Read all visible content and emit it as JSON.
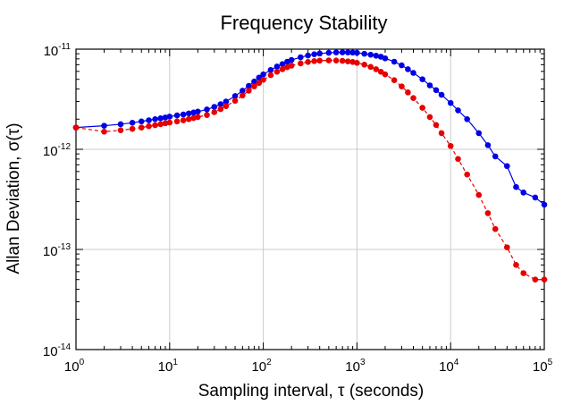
{
  "chart_data": {
    "type": "line",
    "title": "Frequency Stability",
    "xlabel": "Sampling interval, τ (seconds)",
    "ylabel": "Allan Deviation, σ(τ)",
    "xscale": "log",
    "yscale": "log",
    "xlim": [
      1,
      100000
    ],
    "ylim": [
      1e-14,
      1e-11
    ],
    "x_ticks": [
      {
        "base": "10",
        "exp": "0",
        "value": 1
      },
      {
        "base": "10",
        "exp": "1",
        "value": 10
      },
      {
        "base": "10",
        "exp": "2",
        "value": 100
      },
      {
        "base": "10",
        "exp": "3",
        "value": 1000
      },
      {
        "base": "10",
        "exp": "4",
        "value": 10000
      },
      {
        "base": "10",
        "exp": "5",
        "value": 100000
      }
    ],
    "y_ticks": [
      {
        "base": "10",
        "exp": "-14",
        "value": 1e-14
      },
      {
        "base": "10",
        "exp": "-13",
        "value": 1e-13
      },
      {
        "base": "10",
        "exp": "-12",
        "value": 1e-12
      },
      {
        "base": "10",
        "exp": "-11",
        "value": 1e-11
      }
    ],
    "grid": true,
    "series": [
      {
        "color": "#0000e6",
        "line_style": "solid",
        "x": [
          1,
          2,
          3,
          4,
          5,
          6,
          7,
          8,
          9,
          10,
          12,
          14,
          16,
          18,
          20,
          25,
          30,
          35,
          40,
          50,
          60,
          70,
          80,
          90,
          100,
          120,
          140,
          160,
          180,
          200,
          250,
          300,
          350,
          400,
          500,
          600,
          700,
          800,
          900,
          1000,
          1200,
          1400,
          1600,
          1800,
          2000,
          2500,
          3000,
          3500,
          4000,
          5000,
          6000,
          7000,
          8000,
          10000,
          12000,
          15000,
          20000,
          25000,
          30000,
          40000,
          50000,
          60000,
          80000,
          100000
        ],
        "y": [
          1.65e-12,
          1.72e-12,
          1.78e-12,
          1.84e-12,
          1.9e-12,
          1.95e-12,
          2e-12,
          2.04e-12,
          2.08e-12,
          2.12e-12,
          2.18e-12,
          2.23e-12,
          2.28e-12,
          2.33e-12,
          2.38e-12,
          2.5e-12,
          2.65e-12,
          2.82e-12,
          3e-12,
          3.4e-12,
          3.85e-12,
          4.3e-12,
          4.75e-12,
          5.2e-12,
          5.6e-12,
          6.2e-12,
          6.7e-12,
          7.1e-12,
          7.5e-12,
          7.8e-12,
          8.3e-12,
          8.65e-12,
          8.9e-12,
          9.05e-12,
          9.2e-12,
          9.28e-12,
          9.3e-12,
          9.28e-12,
          9.25e-12,
          9.2e-12,
          9e-12,
          8.8e-12,
          8.6e-12,
          8.4e-12,
          8.1e-12,
          7.5e-12,
          6.9e-12,
          6.3e-12,
          5.8e-12,
          5e-12,
          4.35e-12,
          3.9e-12,
          3.5e-12,
          2.9e-12,
          2.45e-12,
          2e-12,
          1.45e-12,
          1.1e-12,
          8.5e-13,
          6.8e-13,
          4.2e-13,
          3.7e-13,
          3.3e-13,
          2.8e-13
        ]
      },
      {
        "color": "#e60000",
        "line_style": "dashed",
        "x": [
          1,
          2,
          3,
          4,
          5,
          6,
          7,
          8,
          9,
          10,
          12,
          14,
          16,
          18,
          20,
          25,
          30,
          35,
          40,
          50,
          60,
          70,
          80,
          90,
          100,
          120,
          140,
          160,
          180,
          200,
          250,
          300,
          350,
          400,
          500,
          600,
          700,
          800,
          900,
          1000,
          1200,
          1400,
          1600,
          1800,
          2000,
          2500,
          3000,
          3500,
          4000,
          5000,
          6000,
          7000,
          8000,
          10000,
          12000,
          15000,
          20000,
          25000,
          30000,
          40000,
          50000,
          60000,
          80000,
          100000
        ],
        "y": [
          1.65e-12,
          1.5e-12,
          1.55e-12,
          1.6e-12,
          1.65e-12,
          1.7e-12,
          1.74e-12,
          1.78e-12,
          1.82e-12,
          1.85e-12,
          1.9e-12,
          1.95e-12,
          2e-12,
          2.05e-12,
          2.1e-12,
          2.2e-12,
          2.35e-12,
          2.52e-12,
          2.7e-12,
          3.05e-12,
          3.45e-12,
          3.85e-12,
          4.25e-12,
          4.6e-12,
          4.95e-12,
          5.5e-12,
          5.95e-12,
          6.3e-12,
          6.6e-12,
          6.85e-12,
          7.2e-12,
          7.45e-12,
          7.6e-12,
          7.68e-12,
          7.72e-12,
          7.7e-12,
          7.65e-12,
          7.55e-12,
          7.45e-12,
          7.3e-12,
          7e-12,
          6.65e-12,
          6.3e-12,
          5.95e-12,
          5.6e-12,
          4.9e-12,
          4.25e-12,
          3.7e-12,
          3.25e-12,
          2.6e-12,
          2.1e-12,
          1.75e-12,
          1.45e-12,
          1.08e-12,
          8e-13,
          5.6e-13,
          3.5e-13,
          2.3e-13,
          1.6e-13,
          1.05e-13,
          7e-14,
          5.8e-14,
          5e-14,
          5e-14
        ]
      }
    ]
  }
}
